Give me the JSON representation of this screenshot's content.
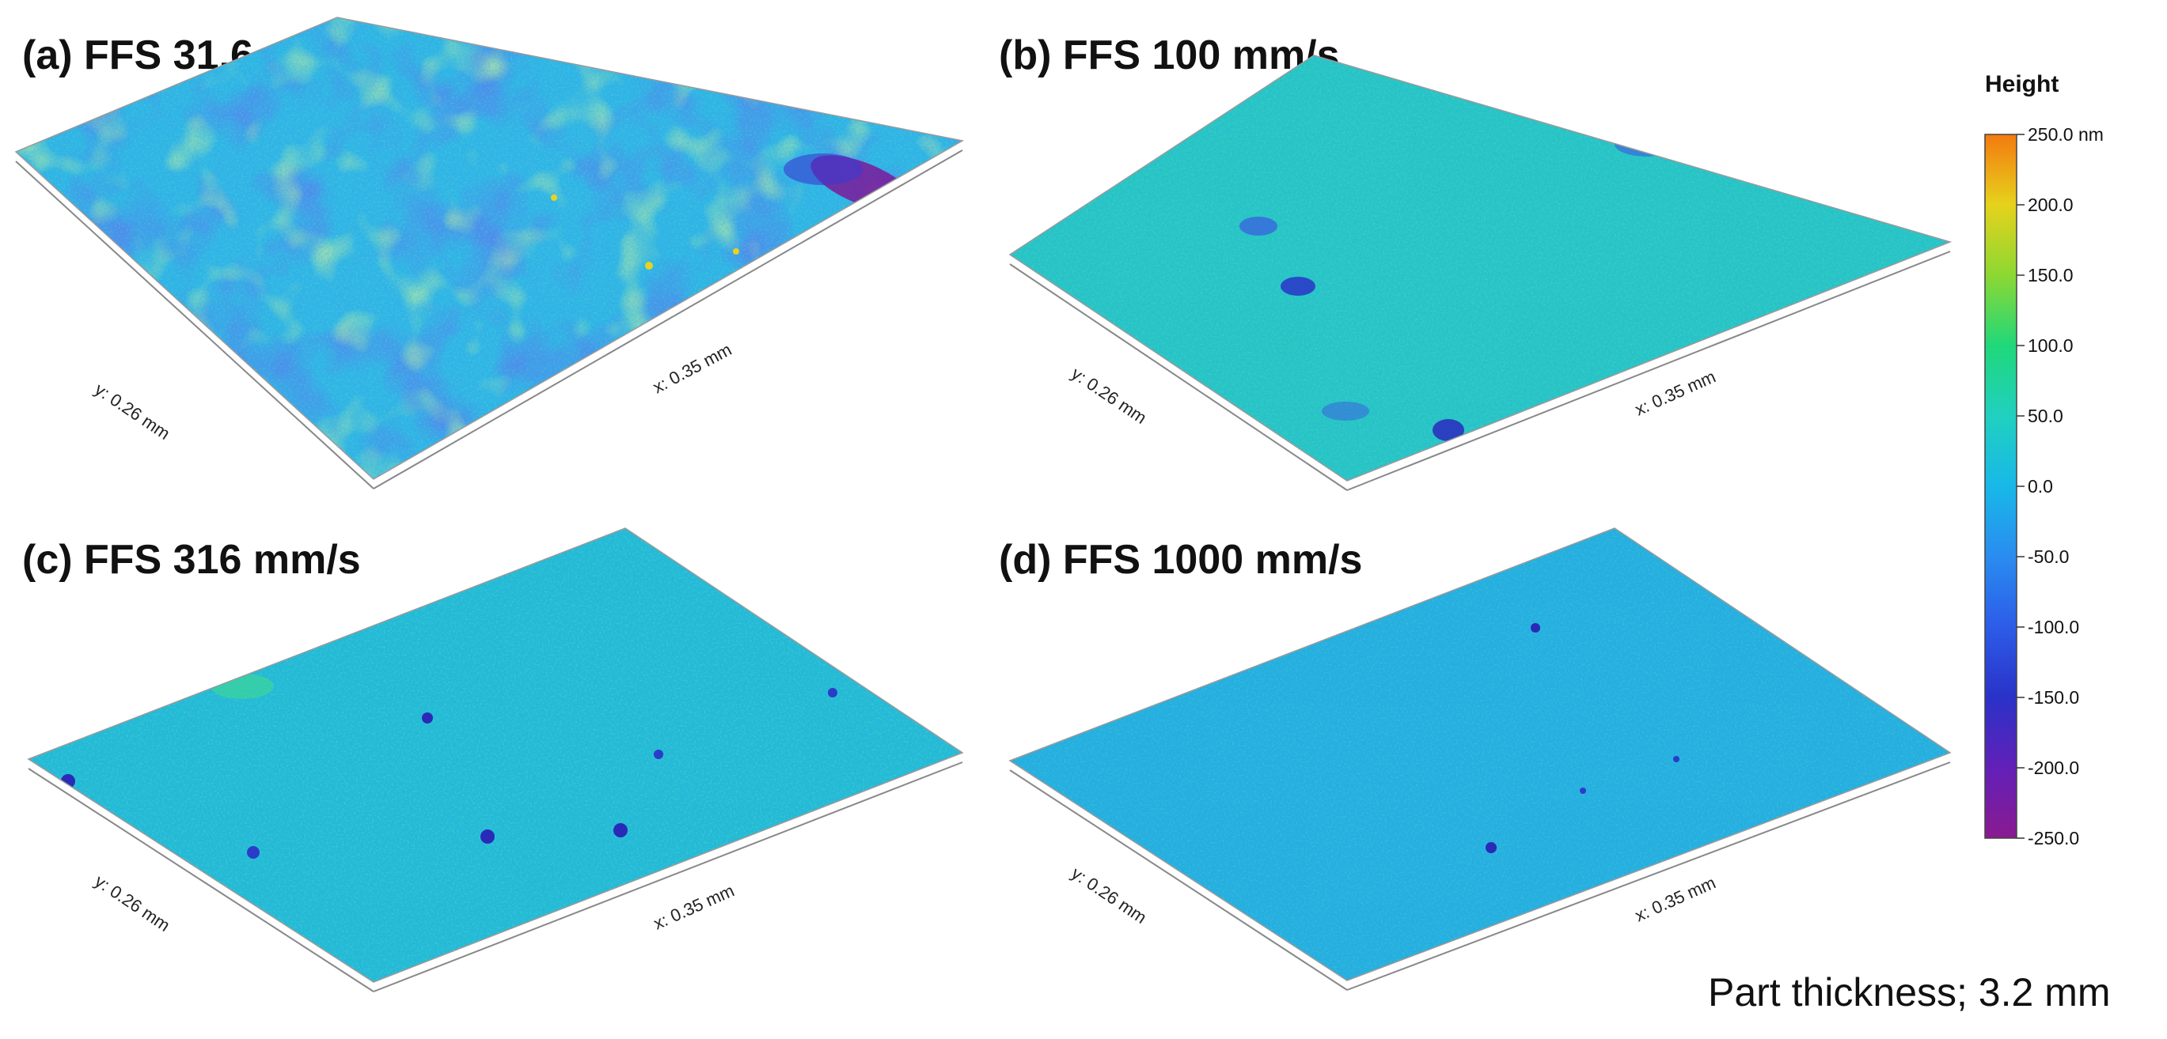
{
  "panels": [
    {
      "id": "a",
      "title": "(a) FFS 31.6 mm/s",
      "x_axis": "x: 0.35 mm",
      "y_axis": "y: 0.26 mm",
      "dominant": "mixed",
      "notes_color": "#3a7ff0"
    },
    {
      "id": "b",
      "title": "(b) FFS 100 mm/s",
      "x_axis": "x: 0.35 mm",
      "y_axis": "y: 0.26 mm",
      "dominant": "cyan-green"
    },
    {
      "id": "c",
      "title": "(c) FFS 316 mm/s",
      "x_axis": "x: 0.35 mm",
      "y_axis": "y: 0.26 mm",
      "dominant": "cyan"
    },
    {
      "id": "d",
      "title": "(d) FFS 1000 mm/s",
      "x_axis": "x: 0.35 mm",
      "y_axis": "y: 0.26 mm",
      "dominant": "cyan-blue"
    }
  ],
  "colorbar": {
    "title": "Height",
    "ticks": [
      "250.0 nm",
      "200.0",
      "150.0",
      "100.0",
      "50.0",
      "0.0",
      "-50.0",
      "-100.0",
      "-150.0",
      "-200.0",
      "-250.0"
    ],
    "colors": [
      "#f47a10",
      "#e6d21c",
      "#8cd832",
      "#20d87a",
      "#20d0c0",
      "#18b8e8",
      "#2a8cf0",
      "#2c5ce8",
      "#2a32c8",
      "#6220b8",
      "#8a1a90"
    ]
  },
  "footer": "Part thickness; 3.2 mm"
}
